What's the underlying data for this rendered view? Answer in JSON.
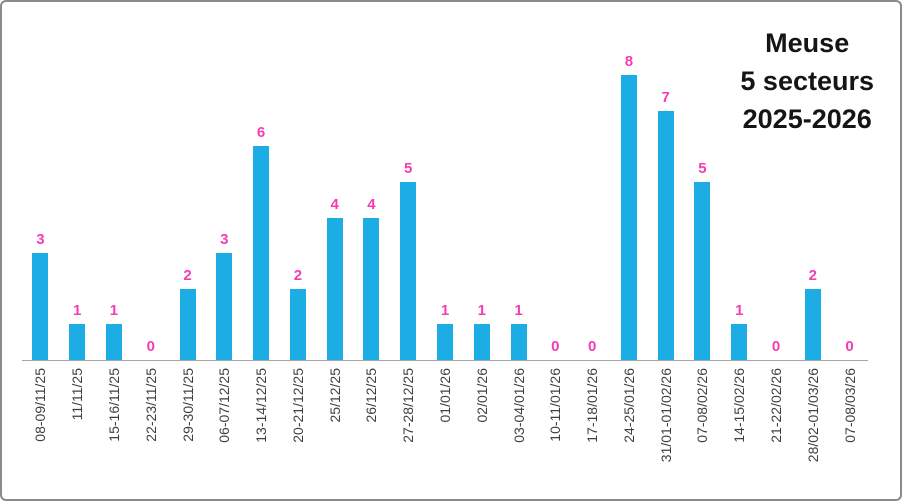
{
  "title": {
    "lines": [
      "Meuse",
      "5 secteurs",
      "2025-2026"
    ]
  },
  "chart_data": {
    "type": "bar",
    "title": "Meuse 5 secteurs 2025-2026",
    "xlabel": "",
    "ylabel": "",
    "ylim": [
      0,
      8
    ],
    "grid": false,
    "legend": "none",
    "data_labels": true,
    "x_label_rotation_deg": 90,
    "categories": [
      "08-09/11/25",
      "11/11/25",
      "15-16/11/25",
      "22-23/11/25",
      "29-30/11/25",
      "06-07/12/25",
      "13-14/12/25",
      "20-21/12/25",
      "25/12/25",
      "26/12/25",
      "27-28/12/25",
      "01/01/26",
      "02/01/26",
      "03-04/01/26",
      "10-11/01/26",
      "17-18/01/26",
      "24-25/01/26",
      "31/01-01/02/26",
      "07-08/02/26",
      "14-15/02/26",
      "21-22/02/26",
      "28/02-01/03/26",
      "07-08/03/26"
    ],
    "values": [
      3,
      1,
      1,
      0,
      2,
      3,
      6,
      2,
      4,
      4,
      5,
      1,
      1,
      1,
      0,
      0,
      8,
      7,
      5,
      1,
      0,
      2,
      0
    ]
  },
  "colors": {
    "bar": "#1CADE4",
    "value_label": "#F53CB4",
    "axis_line": "#A6A6A6",
    "axis_text": "#3F3F3F",
    "title_text": "#151515",
    "border": "#8A8A8A"
  }
}
